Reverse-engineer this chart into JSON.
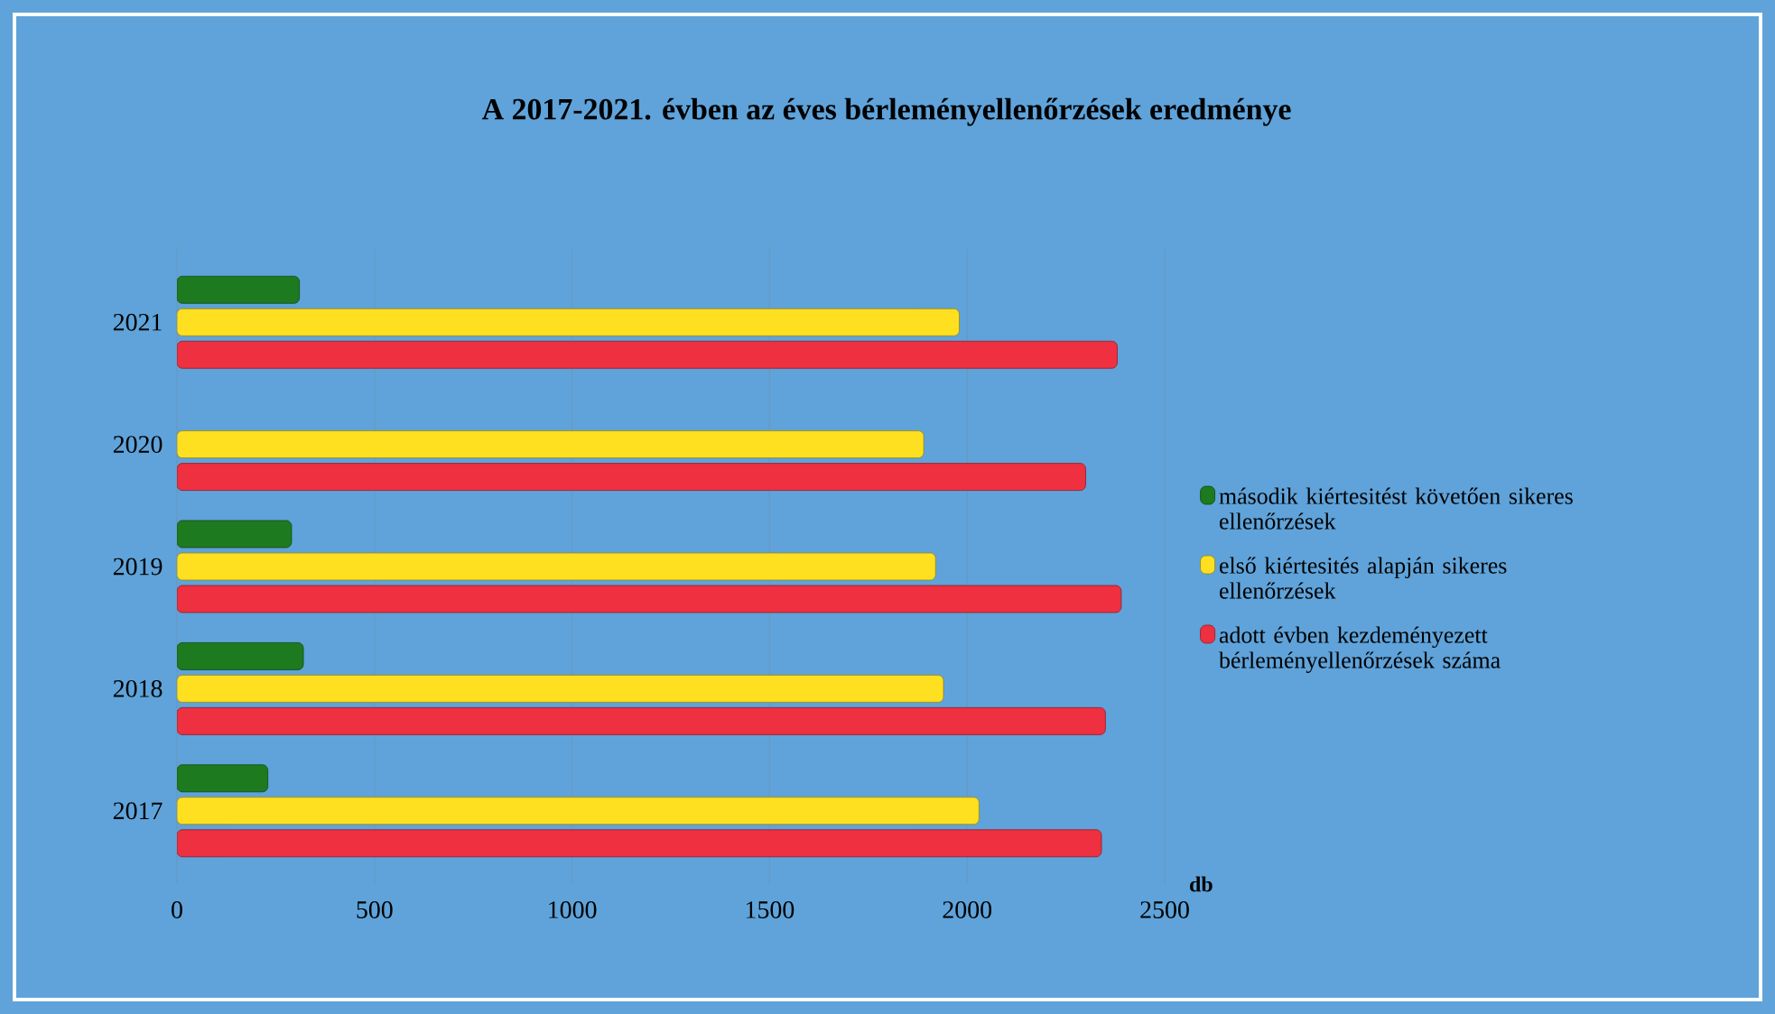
{
  "chart_data": {
    "type": "bar",
    "orientation": "horizontal",
    "title": "A 2017-2021. évben az éves bérleményellenőrzések eredménye",
    "xlabel": "db",
    "categories": [
      "2021",
      "2020",
      "2019",
      "2018",
      "2017"
    ],
    "series": [
      {
        "name": "második kiértesitést követően sikeres ellenőrzések",
        "color": "#1e7a1e",
        "values": [
          310,
          null,
          290,
          320,
          230
        ]
      },
      {
        "name": "első kiértesités alapján sikeres ellenőrzések",
        "color": "#ffe020",
        "values": [
          1980,
          1890,
          1920,
          1940,
          2030
        ]
      },
      {
        "name": "adott évben kezdeményezett bérleményellenőrzések száma",
        "color": "#ee3040",
        "values": [
          2380,
          2300,
          2390,
          2350,
          2340
        ]
      }
    ],
    "xlim": [
      0,
      2500
    ],
    "xticks": [
      0,
      500,
      1000,
      1500,
      2000,
      2500
    ],
    "grid": "x",
    "legend": "right"
  }
}
